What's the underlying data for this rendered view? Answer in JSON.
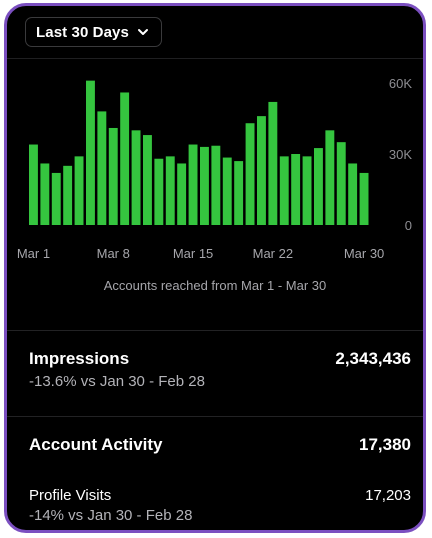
{
  "date_range": {
    "label": "Last 30 Days",
    "icon": "chevron-down-icon"
  },
  "chart_data": {
    "type": "bar",
    "color": "#35c53f",
    "categories": [
      "Mar 1",
      "Mar 2",
      "Mar 3",
      "Mar 4",
      "Mar 5",
      "Mar 6",
      "Mar 7",
      "Mar 8",
      "Mar 9",
      "Mar 10",
      "Mar 11",
      "Mar 12",
      "Mar 13",
      "Mar 14",
      "Mar 15",
      "Mar 16",
      "Mar 17",
      "Mar 18",
      "Mar 19",
      "Mar 20",
      "Mar 21",
      "Mar 22",
      "Mar 23",
      "Mar 24",
      "Mar 25",
      "Mar 26",
      "Mar 27",
      "Mar 28",
      "Mar 29",
      "Mar 30"
    ],
    "values": [
      34000,
      26000,
      22000,
      25000,
      29000,
      61000,
      48000,
      41000,
      56000,
      40000,
      38000,
      28000,
      29000,
      26000,
      34000,
      33000,
      33500,
      28500,
      27000,
      43000,
      46000,
      52000,
      29000,
      30000,
      29000,
      32500,
      40000,
      35000,
      26000,
      22000
    ],
    "xticks": [
      "Mar 1",
      "Mar 8",
      "Mar 15",
      "Mar 22",
      "Mar 30"
    ],
    "yticks": [
      "60K",
      "30K",
      "0"
    ],
    "ylim": [
      0,
      60000
    ],
    "grid": false
  },
  "chart_caption": "Accounts reached from Mar 1 - Mar 30",
  "impressions": {
    "title": "Impressions",
    "value": "2,343,436",
    "change": "-13.6% vs Jan 30 - Feb 28"
  },
  "account_activity": {
    "title": "Account Activity",
    "value": "17,380",
    "profile_visits": {
      "title": "Profile Visits",
      "value": "17,203",
      "change": "-14% vs Jan 30 - Feb 28"
    }
  }
}
